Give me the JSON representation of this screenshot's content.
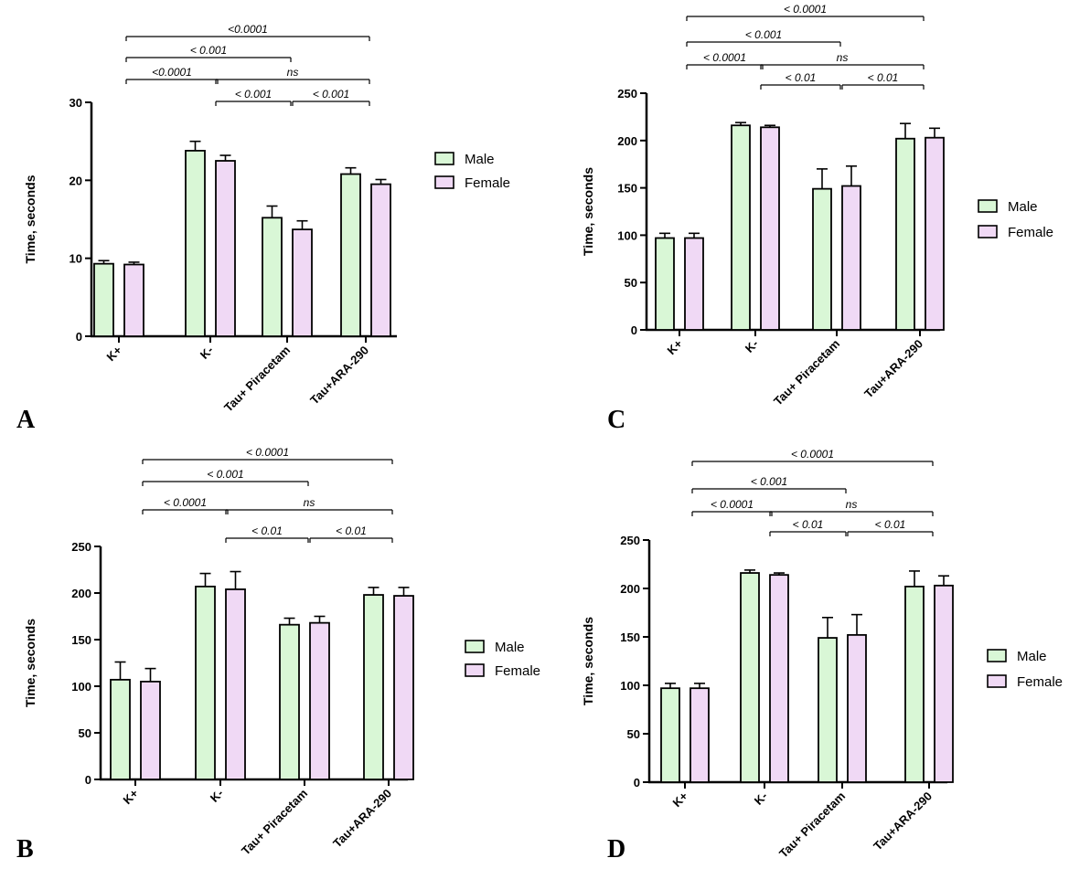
{
  "chart_data": [
    {
      "panel": "A",
      "type": "bar",
      "ylabel": "Time, seconds",
      "ylim": [
        0,
        30
      ],
      "yticks": [
        0,
        10,
        20,
        30
      ],
      "categories": [
        "K+",
        "K-",
        "Tau+ Piracetam",
        "Tau+ARA-290"
      ],
      "series": [
        {
          "name": "Male",
          "color": "#d9f7d6",
          "values": [
            9.3,
            23.8,
            15.2,
            20.8
          ],
          "errors": [
            0.4,
            1.2,
            1.5,
            0.8
          ]
        },
        {
          "name": "Female",
          "color": "#f0d9f5",
          "values": [
            9.2,
            22.5,
            13.7,
            19.5
          ],
          "errors": [
            0.3,
            0.7,
            1.1,
            0.6
          ]
        }
      ],
      "legend": "right",
      "significance": [
        {
          "from": 0,
          "to": 3,
          "label": "<0.0001"
        },
        {
          "from": 0,
          "to": 2,
          "label": "< 0.001"
        },
        {
          "from": 0,
          "to": 1,
          "label": "<0.0001"
        },
        {
          "from": 1,
          "to": 3,
          "label": "ns"
        },
        {
          "from": 1,
          "to": 2,
          "label": "< 0.001"
        },
        {
          "from": 2,
          "to": 3,
          "label": "< 0.001"
        }
      ]
    },
    {
      "panel": "B",
      "type": "bar",
      "ylabel": "Time, seconds",
      "ylim": [
        0,
        250
      ],
      "yticks": [
        0,
        50,
        100,
        150,
        200,
        250
      ],
      "categories": [
        "K+",
        "K-",
        "Tau+ Piracetam",
        "Tau+ARA-290"
      ],
      "series": [
        {
          "name": "Male",
          "color": "#d9f7d6",
          "values": [
            107,
            207,
            166,
            198
          ],
          "errors": [
            19,
            14,
            7,
            8
          ]
        },
        {
          "name": "Female",
          "color": "#f0d9f5",
          "values": [
            105,
            204,
            168,
            197
          ],
          "errors": [
            14,
            19,
            7,
            9
          ]
        }
      ],
      "legend": "right",
      "significance": [
        {
          "from": 0,
          "to": 3,
          "label": "< 0.0001"
        },
        {
          "from": 0,
          "to": 2,
          "label": "< 0.001"
        },
        {
          "from": 0,
          "to": 1,
          "label": "< 0.0001"
        },
        {
          "from": 1,
          "to": 3,
          "label": "ns"
        },
        {
          "from": 1,
          "to": 2,
          "label": "< 0.01"
        },
        {
          "from": 2,
          "to": 3,
          "label": "< 0.01"
        }
      ]
    },
    {
      "panel": "C",
      "type": "bar",
      "ylabel": "Time, seconds",
      "ylim": [
        0,
        250
      ],
      "yticks": [
        0,
        50,
        100,
        150,
        200,
        250
      ],
      "categories": [
        "K+",
        "K-",
        "Tau+ Piracetam",
        "Tau+ARA-290"
      ],
      "series": [
        {
          "name": "Male",
          "color": "#d9f7d6",
          "values": [
            97,
            216,
            149,
            202
          ],
          "errors": [
            5,
            3,
            21,
            16
          ]
        },
        {
          "name": "Female",
          "color": "#f0d9f5",
          "values": [
            97,
            214,
            152,
            203
          ],
          "errors": [
            5,
            2,
            21,
            10
          ]
        }
      ],
      "legend": "right",
      "significance": [
        {
          "from": 0,
          "to": 3,
          "label": "< 0.0001"
        },
        {
          "from": 0,
          "to": 2,
          "label": "< 0.001"
        },
        {
          "from": 0,
          "to": 1,
          "label": "< 0.0001"
        },
        {
          "from": 1,
          "to": 3,
          "label": "ns"
        },
        {
          "from": 1,
          "to": 2,
          "label": "< 0.01"
        },
        {
          "from": 2,
          "to": 3,
          "label": "< 0.01"
        }
      ]
    },
    {
      "panel": "D",
      "type": "bar",
      "ylabel": "Time, seconds",
      "ylim": [
        0,
        250
      ],
      "yticks": [
        0,
        50,
        100,
        150,
        200,
        250
      ],
      "categories": [
        "K+",
        "K-",
        "Tau+ Piracetam",
        "Tau+ARA-290"
      ],
      "series": [
        {
          "name": "Male",
          "color": "#d9f7d6",
          "values": [
            97,
            216,
            149,
            202
          ],
          "errors": [
            5,
            3,
            21,
            16
          ]
        },
        {
          "name": "Female",
          "color": "#f0d9f5",
          "values": [
            97,
            214,
            152,
            203
          ],
          "errors": [
            5,
            2,
            21,
            10
          ]
        }
      ],
      "legend": "right",
      "significance": [
        {
          "from": 0,
          "to": 3,
          "label": "< 0.0001"
        },
        {
          "from": 0,
          "to": 2,
          "label": "< 0.001"
        },
        {
          "from": 0,
          "to": 1,
          "label": "< 0.0001"
        },
        {
          "from": 1,
          "to": 3,
          "label": "ns"
        },
        {
          "from": 1,
          "to": 2,
          "label": "< 0.01"
        },
        {
          "from": 2,
          "to": 3,
          "label": "< 0.01"
        }
      ]
    }
  ]
}
